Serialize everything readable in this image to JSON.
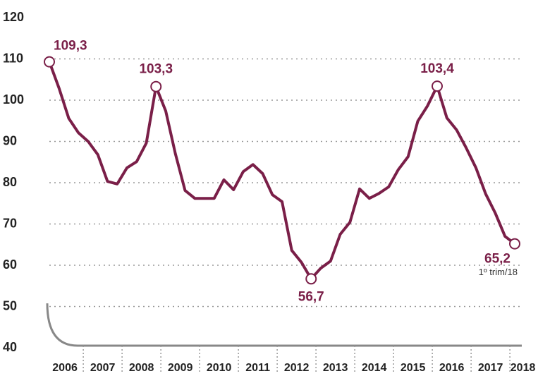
{
  "chart_data": {
    "type": "line",
    "year_labels": [
      "2006",
      "2007",
      "2008",
      "2009",
      "2010",
      "2011",
      "2012",
      "2013",
      "2014",
      "2015",
      "2016",
      "2017",
      "2018"
    ],
    "values": [
      109.3,
      102.9,
      95.6,
      92.1,
      90,
      86.8,
      80.3,
      79.7,
      83.6,
      85.1,
      89.6,
      103.3,
      97.4,
      87,
      78.1,
      76.2,
      76.2,
      76.2,
      80.7,
      78.3,
      82.7,
      84.4,
      82.2,
      77.1,
      75.4,
      63.6,
      60.7,
      56.7,
      59.3,
      61,
      67.5,
      70.4,
      78.5,
      76.2,
      77.4,
      79,
      83.2,
      86.3,
      94.9,
      98.6,
      103.4,
      95.7,
      92.8,
      88.4,
      83.6,
      77.3,
      72.6,
      67,
      65.2
    ],
    "value_labels": [
      "109,3",
      null,
      null,
      null,
      null,
      null,
      null,
      null,
      null,
      null,
      null,
      "103,3",
      null,
      null,
      null,
      null,
      null,
      null,
      null,
      null,
      null,
      null,
      null,
      null,
      null,
      null,
      null,
      "56,7",
      null,
      null,
      null,
      null,
      null,
      null,
      null,
      null,
      null,
      null,
      null,
      null,
      "103,4",
      null,
      null,
      null,
      null,
      null,
      null,
      null,
      "65,2"
    ],
    "note": "1º trim/18",
    "color": "#7a1f48",
    "ylim": [
      40,
      120
    ],
    "yticks": [
      40,
      50,
      60,
      70,
      80,
      90,
      100,
      110,
      120
    ],
    "grid": true
  }
}
